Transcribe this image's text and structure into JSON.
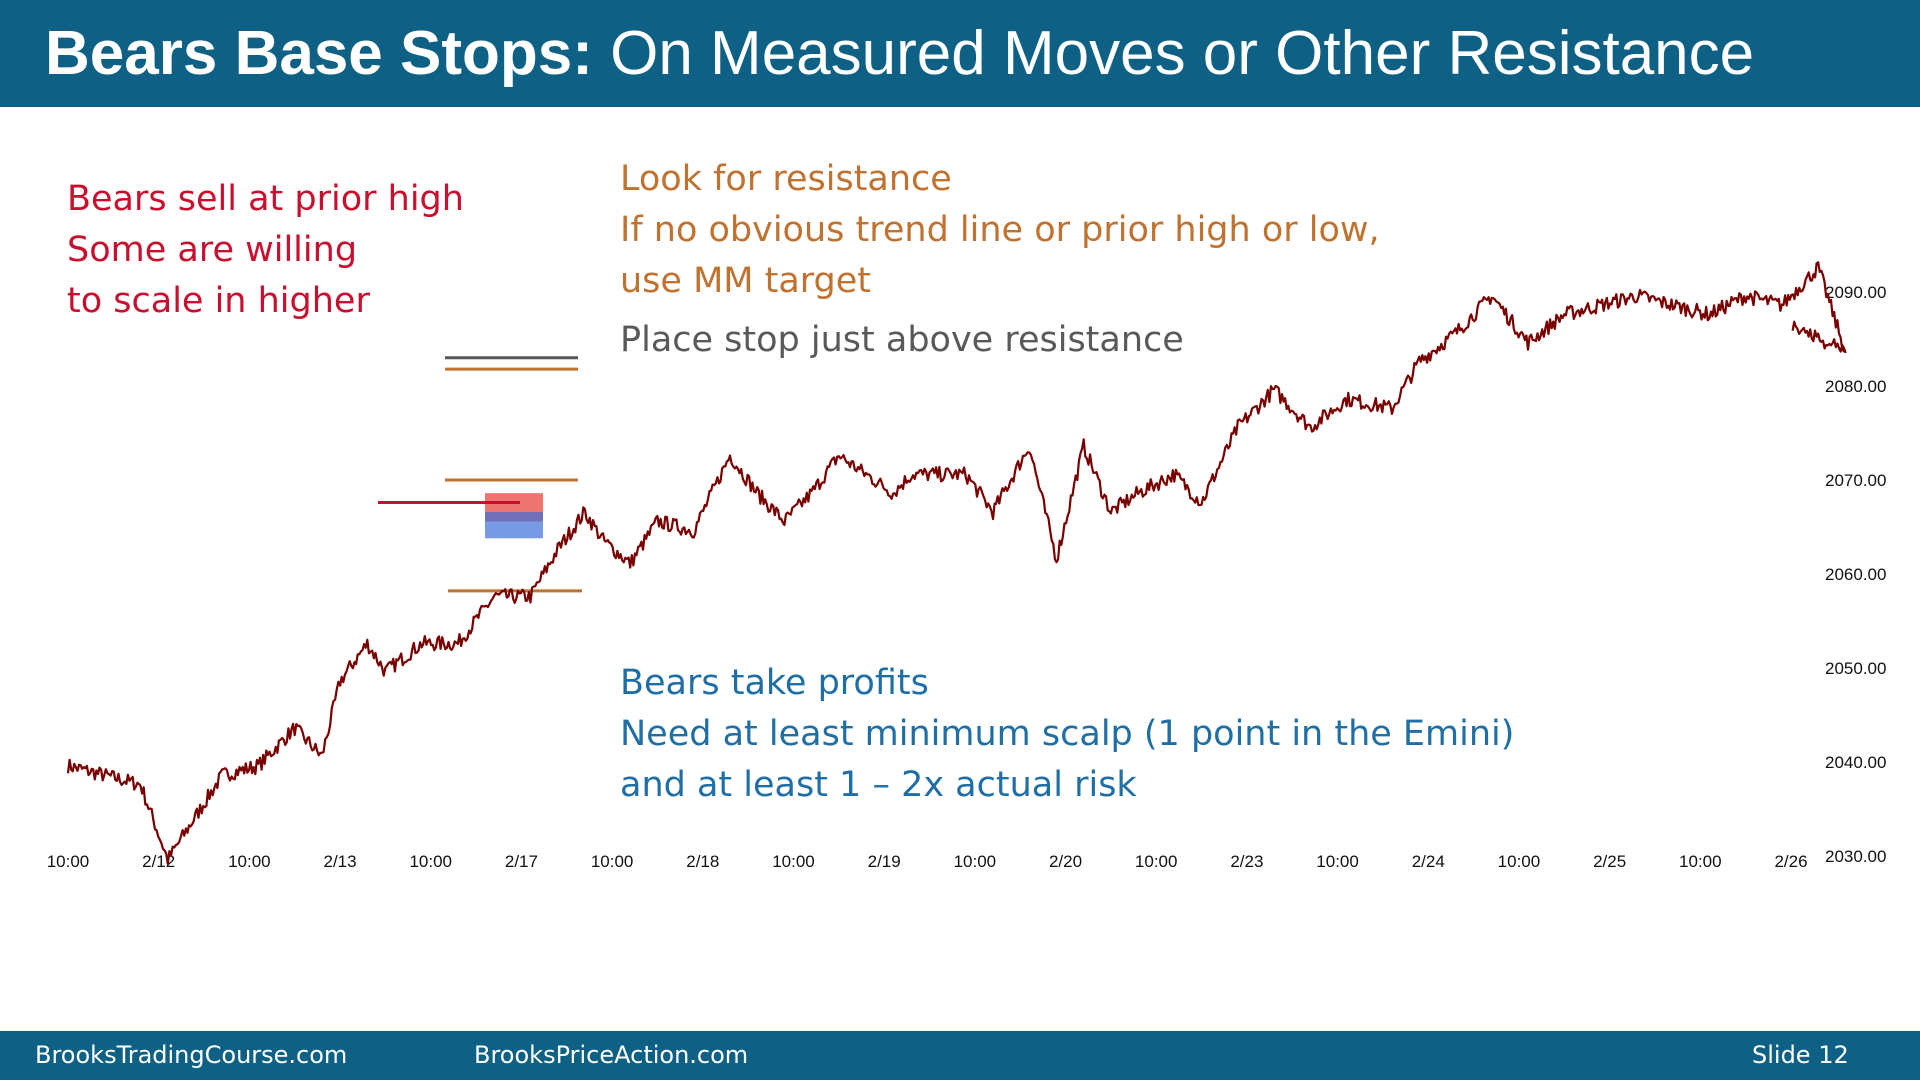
{
  "title": {
    "bold": "Bears Base Stops:",
    "rest": " On Measured Moves or Other Resistance"
  },
  "notes": {
    "red": [
      "Bears sell at prior high",
      "Some are willing",
      "to scale in higher"
    ],
    "orange": [
      "Look for resistance",
      "If no obvious trend line or prior high or low,",
      "use MM target"
    ],
    "gray": [
      "Place stop just above resistance"
    ],
    "blue": [
      "Bears take profits",
      "Need at least minimum scalp (1 point in the Emini)",
      "and at least 1 – 2x actual risk"
    ]
  },
  "footer": {
    "left": "BrooksTradingCourse.com",
    "center": "BrooksPriceAction.com",
    "slide": "Slide  12"
  },
  "colors": {
    "header": "#0e6185",
    "price": "#7a0000",
    "red_note": "#c8102e",
    "orange_note": "#c07230",
    "gray_note": "#595959",
    "blue_note": "#1f6fa6"
  },
  "chart_data": {
    "type": "line",
    "title": "",
    "xlabel": "",
    "ylabel": "",
    "ylim": [
      2024,
      2096
    ],
    "y_ticks": [
      "2090.00",
      "2080.00",
      "2070.00",
      "2060.00",
      "2050.00",
      "2040.00",
      "2030.00"
    ],
    "y_tick_values": [
      2090,
      2080,
      2070,
      2060,
      2050,
      2040,
      2030
    ],
    "x_ticks": [
      "10:00",
      "2/12",
      "10:00",
      "2/13",
      "10:00",
      "2/17",
      "10:00",
      "2/18",
      "10:00",
      "2/19",
      "10:00",
      "2/20",
      "10:00",
      "2/23",
      "10:00",
      "2/24",
      "10:00",
      "2/25",
      "10:00",
      "2/26"
    ],
    "grid": false,
    "series": [
      {
        "color": "#7a0000",
        "x": [
          0.0,
          0.4,
          0.8,
          1.1,
          1.3,
          1.7,
          2.1,
          2.5,
          2.8,
          3.0,
          3.3,
          3.5,
          3.9,
          4.3,
          4.7,
          5.1,
          5.4,
          5.7,
          5.9,
          6.2,
          6.5,
          6.9,
          7.3,
          7.6,
          7.9,
          8.2,
          8.5,
          8.8,
          9.1,
          9.3,
          9.5,
          9.7,
          9.9,
          10.2,
          10.6,
          10.9,
          11.2,
          11.5,
          11.8,
          12.2,
          12.5,
          12.9,
          13.3,
          13.7,
          14.1,
          14.6,
          14.9,
          15.3,
          15.7,
          16.1,
          16.5,
          16.9,
          17.3,
          17.7,
          18.1,
          18.5,
          18.9,
          19.3,
          19.6,
          19.0
        ],
        "values": [
          2039.6,
          2038.6,
          2037.6,
          2029.6,
          2032.6,
          2038.6,
          2039.6,
          2043.6,
          2040.6,
          2048.6,
          2052.6,
          2049.6,
          2052.6,
          2052.6,
          2057.6,
          2057.6,
          2062.6,
          2066.6,
          2063.6,
          2061.1,
          2065.6,
          2064.6,
          2072.6,
          2068.6,
          2065.6,
          2068.6,
          2072.6,
          2070.6,
          2068.6,
          2070.6,
          2070.6,
          2070.6,
          2070.6,
          2066.6,
          2073.6,
          2061.6,
          2073.6,
          2066.6,
          2068.6,
          2070.6,
          2067.6,
          2075.6,
          2079.6,
          2075.6,
          2078.6,
          2077.6,
          2082.6,
          2085.6,
          2089.6,
          2084.6,
          2087.6,
          2088.6,
          2089.6,
          2088.6,
          2087.6,
          2089.6,
          2088.6,
          2092.6,
          2083.6,
          2086.6
        ]
      }
    ],
    "level_lines": [
      {
        "color": "#595959",
        "y": 2083.0
      },
      {
        "color": "#c07230",
        "y": 2081.8
      },
      {
        "color": "#c07230",
        "y": 2070.0
      },
      {
        "color": "#c8102e",
        "y": 2067.6
      },
      {
        "color": "#c07230",
        "y": 2058.2
      }
    ],
    "entry_boxes": [
      {
        "color": "#e53935",
        "y_from": 2065.6,
        "y_to": 2068.6
      },
      {
        "color": "#3f6fd8",
        "y_from": 2063.8,
        "y_to": 2066.6
      }
    ]
  }
}
